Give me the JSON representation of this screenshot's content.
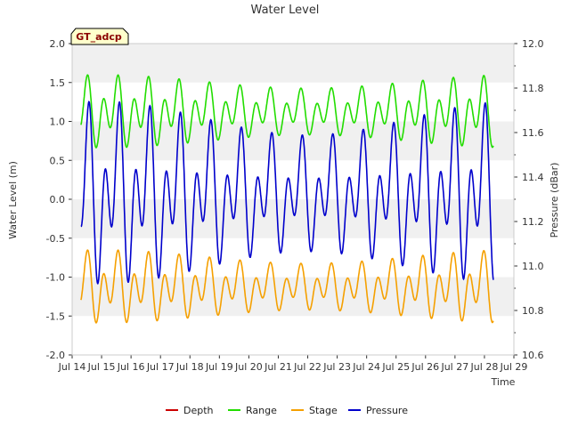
{
  "chart_data": {
    "type": "line",
    "title": "Water Level",
    "xlabel": "Time",
    "ylabel": "Water Level (m)",
    "y2label": "Pressure (dBar)",
    "site_label": "GT_adcp",
    "xlim": [
      14,
      29
    ],
    "ylim": [
      -2.0,
      2.0
    ],
    "y2lim": [
      10.6,
      12.0
    ],
    "x_tick_labels": [
      "Jul 14",
      "Jul 15",
      "Jul 16",
      "Jul 17",
      "Jul 18",
      "Jul 19",
      "Jul 20",
      "Jul 21",
      "Jul 22",
      "Jul 23",
      "Jul 24",
      "Jul 25",
      "Jul 26",
      "Jul 27",
      "Jul 28",
      "Jul 29"
    ],
    "y_tick_labels": [
      "2.0",
      "1.5",
      "1.0",
      "0.5",
      "0.0",
      "-0.5",
      "-1.0",
      "-1.5",
      "-2.0"
    ],
    "y2_tick_labels": [
      "12.0",
      "11.8",
      "11.6",
      "11.4",
      "11.2",
      "11.0",
      "10.8",
      "10.6"
    ],
    "legend_position": "bottom",
    "grid": "alternating horizontal bands",
    "series": [
      {
        "name": "Depth",
        "color": "#cc0000",
        "axis": "left",
        "values": []
      },
      {
        "name": "Range",
        "color": "#22dd00",
        "axis": "left",
        "model": {
          "mean": 1.12,
          "semidiurnal_amp": 0.32,
          "diurnal_amp": 0.2,
          "phase_shift": 0
        }
      },
      {
        "name": "Stage",
        "color": "#f5a000",
        "axis": "left",
        "model": {
          "mean": -1.13,
          "semidiurnal_amp": 0.32,
          "diurnal_amp": 0.2,
          "phase_shift": 0
        }
      },
      {
        "name": "Pressure",
        "color": "#0000cc",
        "axis": "right",
        "model": {
          "mean": 11.32,
          "semidiurnal_amp": 0.26,
          "diurnal_amp": 0.2,
          "phase_shift": 0.05
        }
      }
    ],
    "time_range": [
      14.3,
      28.3
    ]
  }
}
